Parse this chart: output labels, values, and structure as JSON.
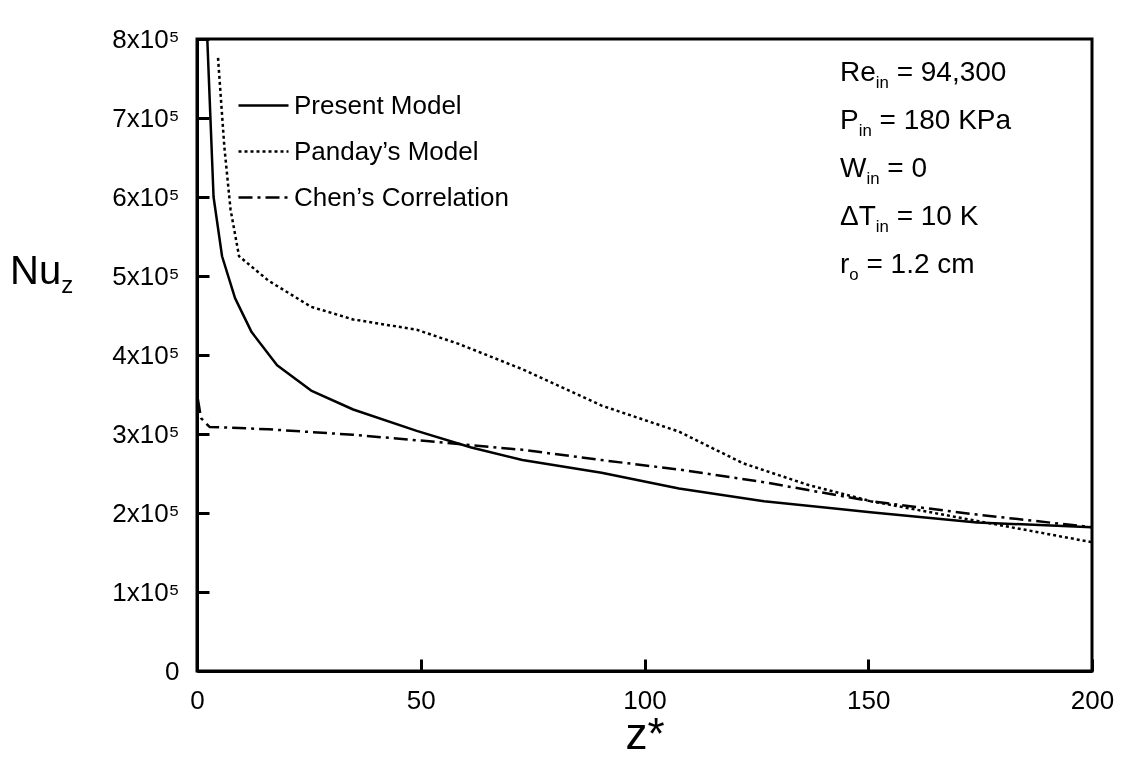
{
  "chart_data": {
    "type": "line",
    "xlabel": "z*",
    "ylabel": "Nu$_{z}$",
    "xlim": [
      0,
      200
    ],
    "xticks": [
      0,
      50,
      100,
      150,
      200
    ],
    "ylim": [
      0,
      800000
    ],
    "yticks": [
      0,
      {
        "value": 100000,
        "label": "1x10⁵"
      },
      {
        "value": 200000,
        "label": "2x10⁵"
      },
      {
        "value": 300000,
        "label": "3x10⁵"
      },
      {
        "value": 400000,
        "label": "4x10⁵"
      },
      {
        "value": 500000,
        "label": "5x10⁵"
      },
      {
        "value": 600000,
        "label": "6x10⁵"
      },
      {
        "value": 700000,
        "label": "7x10⁵"
      },
      {
        "value": 800000,
        "label": "8x10⁵"
      }
    ],
    "grid": false,
    "legend": "top left",
    "series": [
      {
        "name": "Present Model",
        "color": "#000000",
        "line_style": "solid",
        "x": [
          2.3,
          3.7,
          5.6,
          8.5,
          12.2,
          17.9,
          25.5,
          34.9,
          49.1,
          61.3,
          72.7,
          90.4,
          107.7,
          126.7,
          150.5,
          174.3,
          200
        ],
        "values": [
          800000,
          600000,
          525000,
          472000,
          429000,
          387000,
          355000,
          331000,
          304000,
          283000,
          267000,
          251000,
          231000,
          215000,
          201000,
          188000,
          182000
        ]
      },
      {
        "name": "Panday’s Model",
        "color": "#000000",
        "line_style": "dotted",
        "x": [
          4.7,
          6.1,
          7.5,
          9.4,
          16.0,
          25.5,
          34.9,
          49.1,
          58.5,
          72.7,
          90.4,
          107.7,
          122,
          136.3,
          150.5,
          174.3,
          200
        ],
        "values": [
          776000,
          664000,
          584000,
          525000,
          494000,
          461000,
          445000,
          432000,
          414000,
          382000,
          336000,
          303000,
          263000,
          236000,
          215000,
          190000,
          163000
        ]
      },
      {
        "name": "Chen’s Correlation",
        "color": "#000000",
        "line_style": "dashdot",
        "x": [
          0.2,
          0.9,
          2.8,
          16,
          34.9,
          51.3,
          72.7,
          90.4,
          107.7,
          126.7,
          150.5,
          174.3,
          200
        ],
        "values": [
          344000,
          320000,
          309000,
          306000,
          299000,
          291000,
          280000,
          267000,
          255000,
          239000,
          215000,
          198000,
          182000
        ]
      }
    ],
    "annotations": [
      "Re$_{in}$ = 94,300",
      "P$_{in}$ = 180 KPa",
      "W$_{in}$ = 0",
      "ΔT$_{in}$ = 10 K",
      "r$_{o}$ = 1.2 cm"
    ]
  }
}
